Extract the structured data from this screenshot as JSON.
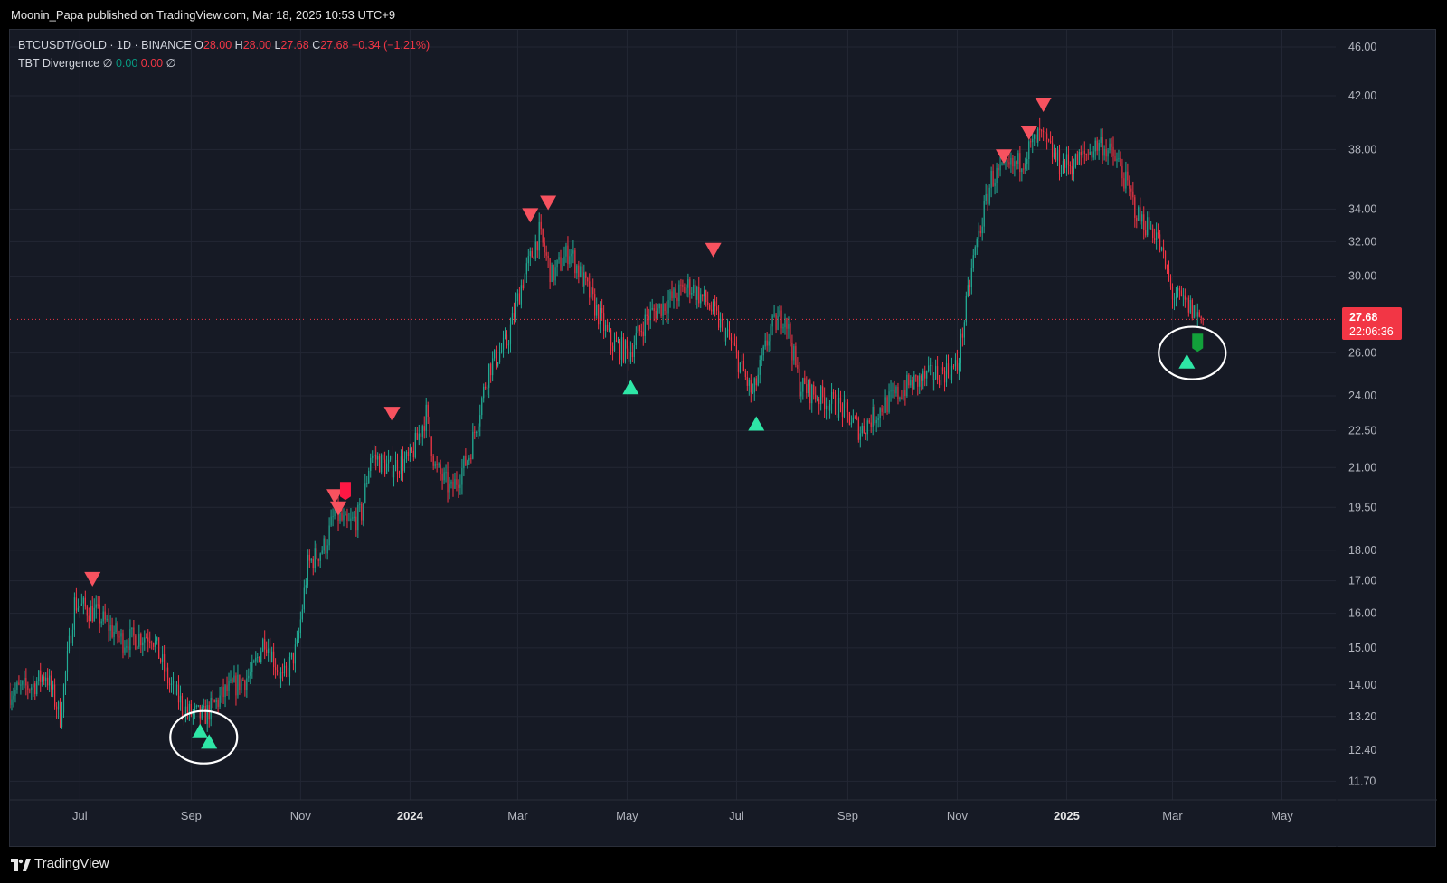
{
  "header": {
    "publisher": "Moonin_Papa published on TradingView.com, Mar 18, 2025 10:53 UTC+9"
  },
  "legend": {
    "symbol": "BTCUSDT/GOLD · 1D · BINANCE",
    "o_label": "O",
    "o_value": "28.00",
    "h_label": "H",
    "h_value": "28.00",
    "l_label": "L",
    "l_value": "27.68",
    "c_label": "C",
    "c_value": "27.68",
    "change": "−0.34 (−1.21%)",
    "indicator_name": "TBT Divergence",
    "indicator_sym1": "∅",
    "indicator_v1": "0.00",
    "indicator_v2": "0.00",
    "indicator_sym2": "∅"
  },
  "price_badge": {
    "price": "27.68",
    "countdown": "22:06:36"
  },
  "footer": {
    "brand": "TradingView"
  },
  "colors": {
    "up": "#22ab94",
    "down": "#f23645",
    "signal_up": "#2ee6a6",
    "signal_down": "#f7525f",
    "grid": "#232734"
  },
  "chart_data": {
    "type": "candlestick",
    "y_scale": "log",
    "ylim": [
      11.3,
      47.5
    ],
    "y_ticks": [
      46.0,
      42.0,
      38.0,
      34.0,
      32.0,
      30.0,
      26.0,
      24.0,
      22.5,
      21.0,
      19.5,
      18.0,
      17.0,
      16.0,
      15.0,
      14.0,
      13.2,
      12.4,
      11.7
    ],
    "y_tick_labels": [
      "46.00",
      "42.00",
      "38.00",
      "34.00",
      "32.00",
      "30.00",
      "26.00",
      "24.00",
      "22.50",
      "21.00",
      "19.50",
      "18.00",
      "17.00",
      "16.00",
      "15.00",
      "14.00",
      "13.20",
      "12.40",
      "11.70"
    ],
    "x_range": [
      "2023-05-23",
      "2025-05-31"
    ],
    "x_ticks": [
      "2023-07-01",
      "2023-09-01",
      "2023-11-01",
      "2024-01-01",
      "2024-03-01",
      "2024-05-01",
      "2024-07-01",
      "2024-09-01",
      "2024-11-01",
      "2025-01-01",
      "2025-03-01",
      "2025-05-01"
    ],
    "x_tick_labels": [
      "Jul",
      "Sep",
      "Nov",
      "2024",
      "Mar",
      "May",
      "Jul",
      "Sep",
      "Nov",
      "2025",
      "Mar",
      "May"
    ],
    "x_tick_bold": [
      false,
      false,
      false,
      true,
      false,
      false,
      false,
      false,
      false,
      true,
      false,
      false
    ],
    "close_path": [
      [
        "2023-05-23",
        13.8
      ],
      [
        "2023-06-05",
        14.0
      ],
      [
        "2023-06-12",
        14.3
      ],
      [
        "2023-06-20",
        13.2
      ],
      [
        "2023-06-28",
        16.3
      ],
      [
        "2023-07-10",
        16.0
      ],
      [
        "2023-07-25",
        15.2
      ],
      [
        "2023-08-10",
        15.4
      ],
      [
        "2023-08-20",
        14.0
      ],
      [
        "2023-08-30",
        13.3
      ],
      [
        "2023-09-08",
        13.2
      ],
      [
        "2023-09-20",
        13.8
      ],
      [
        "2023-10-05",
        14.3
      ],
      [
        "2023-10-12",
        15.3
      ],
      [
        "2023-10-22",
        14.1
      ],
      [
        "2023-10-30",
        15.0
      ],
      [
        "2023-11-05",
        17.5
      ],
      [
        "2023-11-15",
        18.2
      ],
      [
        "2023-11-20",
        19.3
      ],
      [
        "2023-11-27",
        18.8
      ],
      [
        "2023-12-05",
        19.3
      ],
      [
        "2023-12-10",
        21.5
      ],
      [
        "2023-12-20",
        21.0
      ],
      [
        "2024-01-01",
        21.3
      ],
      [
        "2024-01-10",
        23.2
      ],
      [
        "2024-01-15",
        21.0
      ],
      [
        "2024-01-24",
        20.1
      ],
      [
        "2024-02-03",
        21.5
      ],
      [
        "2024-02-14",
        25.3
      ],
      [
        "2024-02-24",
        26.5
      ],
      [
        "2024-03-03",
        29.5
      ],
      [
        "2024-03-13",
        32.5
      ],
      [
        "2024-03-20",
        30.0
      ],
      [
        "2024-03-30",
        31.5
      ],
      [
        "2024-04-10",
        29.0
      ],
      [
        "2024-04-22",
        26.5
      ],
      [
        "2024-05-02",
        26.0
      ],
      [
        "2024-05-12",
        27.8
      ],
      [
        "2024-05-22",
        28.5
      ],
      [
        "2024-06-05",
        29.5
      ],
      [
        "2024-06-15",
        28.5
      ],
      [
        "2024-06-28",
        26.5
      ],
      [
        "2024-07-10",
        24.0
      ],
      [
        "2024-07-20",
        27.2
      ],
      [
        "2024-07-28",
        28.0
      ],
      [
        "2024-08-05",
        24.5
      ],
      [
        "2024-08-15",
        24.0
      ],
      [
        "2024-08-28",
        23.5
      ],
      [
        "2024-09-08",
        22.5
      ],
      [
        "2024-09-20",
        23.5
      ],
      [
        "2024-10-05",
        24.5
      ],
      [
        "2024-10-20",
        25.0
      ],
      [
        "2024-11-01",
        25.3
      ],
      [
        "2024-11-10",
        31.0
      ],
      [
        "2024-11-20",
        36.0
      ],
      [
        "2024-12-05",
        37.0
      ],
      [
        "2024-12-17",
        39.0
      ],
      [
        "2024-12-28",
        37.0
      ],
      [
        "2025-01-05",
        37.0
      ],
      [
        "2025-01-20",
        38.5
      ],
      [
        "2025-01-30",
        37.0
      ],
      [
        "2025-02-10",
        33.5
      ],
      [
        "2025-02-20",
        32.5
      ],
      [
        "2025-03-01",
        29.0
      ],
      [
        "2025-03-08",
        28.5
      ],
      [
        "2025-03-18",
        27.68
      ]
    ],
    "signals_down": [
      [
        "2023-07-08",
        17.05
      ],
      [
        "2023-11-20",
        19.9
      ],
      [
        "2023-11-22",
        19.45
      ],
      [
        "2023-12-22",
        23.2
      ],
      [
        "2024-03-08",
        33.6
      ],
      [
        "2024-03-18",
        34.4
      ],
      [
        "2024-06-18",
        31.5
      ],
      [
        "2024-11-27",
        37.5
      ],
      [
        "2024-12-11",
        39.2
      ],
      [
        "2024-12-19",
        41.3
      ]
    ],
    "signals_up": [
      [
        "2023-09-06",
        12.85
      ],
      [
        "2023-09-11",
        12.6
      ],
      [
        "2024-05-03",
        24.4
      ],
      [
        "2024-07-12",
        22.8
      ],
      [
        "2025-03-09",
        25.6
      ]
    ],
    "markers_box": [
      [
        "2023-11-26",
        20.1,
        "down"
      ],
      [
        "2025-03-15",
        26.5,
        "up"
      ]
    ],
    "annotations": [
      [
        "2023-09-08",
        12.7,
        "circle"
      ],
      [
        "2025-03-12",
        26.0,
        "circle"
      ]
    ],
    "last_price": 27.68
  }
}
